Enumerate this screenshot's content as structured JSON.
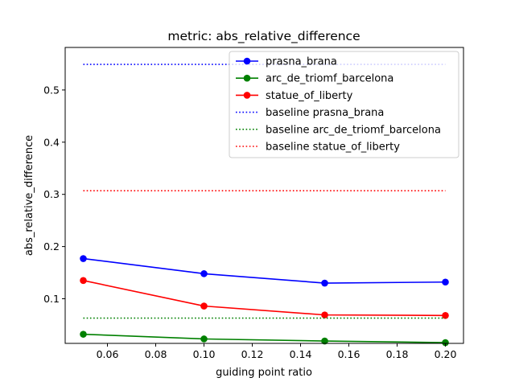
{
  "chart_data": {
    "type": "line",
    "title": "metric: abs_relative_difference",
    "xlabel": "guiding point ratio",
    "ylabel": "abs_relative_difference",
    "xlim": [
      0.0425,
      0.2075
    ],
    "ylim": [
      0.0145,
      0.5815
    ],
    "xticks": [
      0.06,
      0.08,
      0.1,
      0.12,
      0.14,
      0.16,
      0.18,
      0.2
    ],
    "xtick_labels": [
      "0.06",
      "0.08",
      "0.10",
      "0.12",
      "0.14",
      "0.16",
      "0.18",
      "0.20"
    ],
    "yticks": [
      0.1,
      0.2,
      0.3,
      0.4,
      0.5
    ],
    "ytick_labels": [
      "0.1",
      "0.2",
      "0.3",
      "0.4",
      "0.5"
    ],
    "grid": false,
    "legend_position": "top-right",
    "x": [
      0.05,
      0.1,
      0.15,
      0.2
    ],
    "series": [
      {
        "name": "prasna_brana",
        "color": "#0000ff",
        "style": "solid-marker",
        "values": [
          0.177,
          0.148,
          0.13,
          0.132
        ]
      },
      {
        "name": "arc_de_triomf_barcelona",
        "color": "#008000",
        "style": "solid-marker",
        "values": [
          0.032,
          0.023,
          0.019,
          0.016
        ]
      },
      {
        "name": "statue_of_liberty",
        "color": "#ff0000",
        "style": "solid-marker",
        "values": [
          0.135,
          0.086,
          0.069,
          0.068
        ]
      },
      {
        "name": "baseline prasna_brana",
        "color": "#0000ff",
        "style": "dotted",
        "values": [
          0.549,
          0.549,
          0.549,
          0.549
        ]
      },
      {
        "name": "baseline arc_de_triomf_barcelona",
        "color": "#008000",
        "style": "dotted",
        "values": [
          0.063,
          0.063,
          0.063,
          0.063
        ]
      },
      {
        "name": "baseline statue_of_liberty",
        "color": "#ff0000",
        "style": "dotted",
        "values": [
          0.307,
          0.307,
          0.307,
          0.307
        ]
      }
    ]
  }
}
